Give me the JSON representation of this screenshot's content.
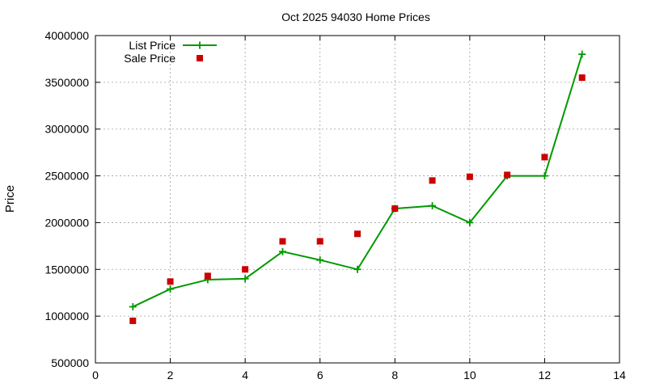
{
  "chart_data": {
    "type": "line",
    "title": "Oct 2025 94030 Home Prices",
    "xlabel": "",
    "ylabel": "Price",
    "xlim": [
      0,
      14
    ],
    "ylim": [
      500000,
      4000000
    ],
    "x_ticks": [
      0,
      2,
      4,
      6,
      8,
      10,
      12,
      14
    ],
    "y_ticks": [
      500000,
      1000000,
      1500000,
      2000000,
      2500000,
      3000000,
      3500000,
      4000000
    ],
    "x_tick_labels": [
      "0",
      "2",
      "4",
      "6",
      "8",
      "10",
      "12",
      "14"
    ],
    "y_tick_labels": [
      "500000",
      "1000000",
      "1500000",
      "2000000",
      "2500000",
      "3000000",
      "3500000",
      "4000000"
    ],
    "grid": true,
    "legend_position": "top-left",
    "series": [
      {
        "name": "List Price",
        "style": "line-with-plus-markers",
        "color": "#009900",
        "x": [
          1,
          2,
          3,
          4,
          5,
          6,
          7,
          8,
          9,
          10,
          11,
          12,
          13
        ],
        "values": [
          1100000,
          1290000,
          1390000,
          1400000,
          1690000,
          1600000,
          1500000,
          2150000,
          2180000,
          2000000,
          2500000,
          2500000,
          3800000
        ]
      },
      {
        "name": "Sale Price",
        "style": "square-markers",
        "color": "#cc0000",
        "x": [
          1,
          2,
          3,
          4,
          5,
          6,
          7,
          8,
          9,
          10,
          11,
          12,
          13
        ],
        "values": [
          950000,
          1370000,
          1430000,
          1500000,
          1800000,
          1800000,
          1880000,
          2150000,
          2450000,
          2490000,
          2510000,
          2700000,
          3550000
        ]
      }
    ]
  }
}
